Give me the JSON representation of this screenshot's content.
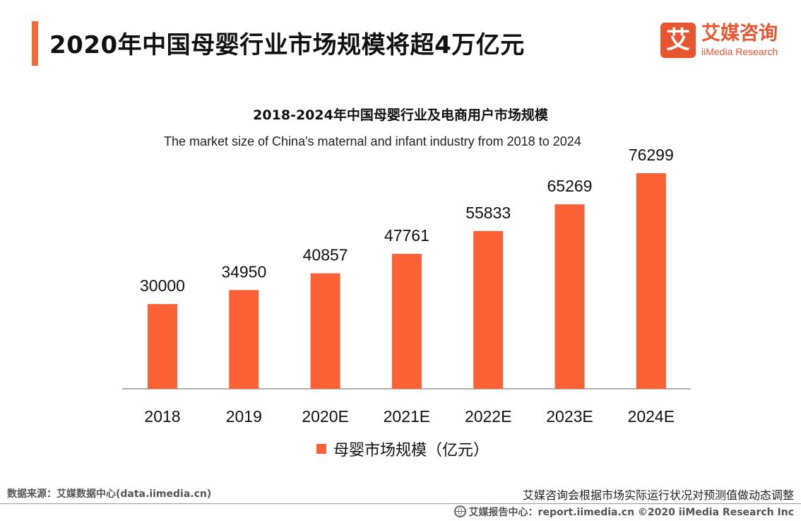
{
  "header": {
    "title": "2020年中国母婴行业市场规模将超4万亿元",
    "logo_mark": "艾",
    "logo_cn": "艾媒咨询",
    "logo_en": "iiMedia Research"
  },
  "chart_data": {
    "type": "bar",
    "title": "2018-2024年中国母婴行业及电商用户市场规模",
    "subtitle": "The market size of China's maternal and infant industry from 2018 to 2024",
    "categories": [
      "2018",
      "2019",
      "2020E",
      "2021E",
      "2022E",
      "2023E",
      "2024E"
    ],
    "series": [
      {
        "name": "母婴市场规模（亿元）",
        "values": [
          30000,
          34950,
          40857,
          47761,
          55833,
          65269,
          76299
        ],
        "color": "#fa6134"
      }
    ],
    "ylim": [
      0,
      80000
    ],
    "grid": false,
    "legend_position": "bottom"
  },
  "footer": {
    "source": "数据来源：艾媒数据中心(data.iimedia.cn)",
    "note": "艾媒咨询会根据市场实际运行状况对预测值做动态调整",
    "report": "艾媒报告中心：report.iimedia.cn  ©2020  iiMedia Research  Inc"
  }
}
